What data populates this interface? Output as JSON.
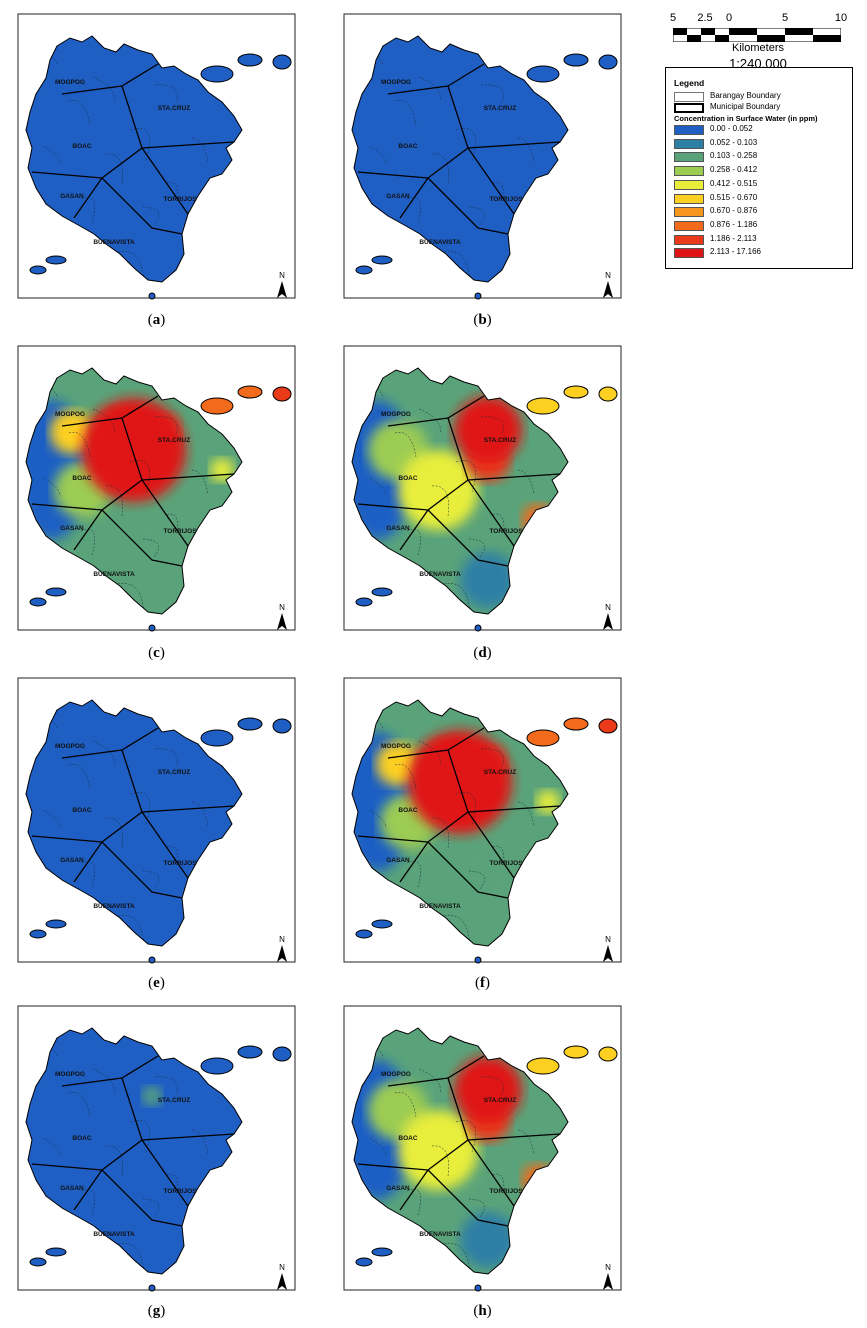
{
  "panels": [
    {
      "label": "a",
      "concentration_level": "low"
    },
    {
      "label": "b",
      "concentration_level": "low"
    },
    {
      "label": "c",
      "concentration_level": "high"
    },
    {
      "label": "d",
      "concentration_level": "medium"
    },
    {
      "label": "e",
      "concentration_level": "low"
    },
    {
      "label": "f",
      "concentration_level": "high"
    },
    {
      "label": "g",
      "concentration_level": "low"
    },
    {
      "label": "h",
      "concentration_level": "medium"
    }
  ],
  "place_names": {
    "mogpog": "MOGPOG",
    "stacruz": "STA.CRUZ",
    "boac": "BOAC",
    "gasan": "GASAN",
    "torrijos": "TORRIJOS",
    "buenavista": "BUENAVISTA"
  },
  "north_label": "N",
  "scale": {
    "ticks": [
      "5",
      "2.5",
      "0",
      "5",
      "10"
    ],
    "units": "Kilometers",
    "ratio": "1:240,000"
  },
  "legend": {
    "title": "Legend",
    "boundaries": [
      "Barangay Boundary",
      "Municipal Boundary"
    ],
    "subtitle": "Concentration in Surface Water (in ppm)",
    "classes": [
      {
        "range": "0.00 - 0.052",
        "color": "#1f5fc4"
      },
      {
        "range": "0.052 - 0.103",
        "color": "#2e7fa6"
      },
      {
        "range": "0.103 - 0.258",
        "color": "#5aa37a"
      },
      {
        "range": "0.258 - 0.412",
        "color": "#9ccc52"
      },
      {
        "range": "0.412 - 0.515",
        "color": "#e8ee3a"
      },
      {
        "range": "0.515 - 0.670",
        "color": "#fcd020"
      },
      {
        "range": "0.670 - 0.876",
        "color": "#f7961d"
      },
      {
        "range": "0.876 - 1.186",
        "color": "#f26a1c"
      },
      {
        "range": "1.186 - 2.113",
        "color": "#ea3a1a"
      },
      {
        "range": "2.113 - 17.166",
        "color": "#e01414"
      }
    ]
  }
}
